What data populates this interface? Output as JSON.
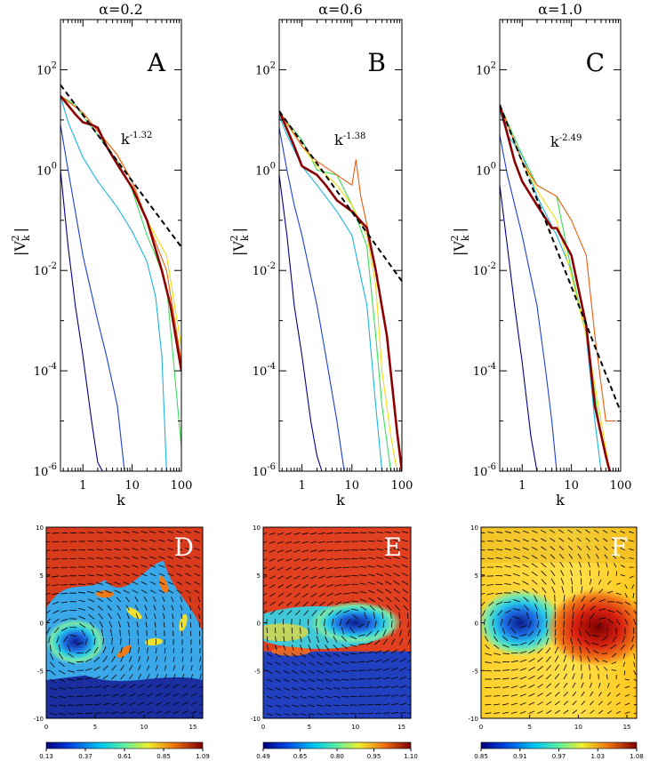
{
  "chart_data": [
    {
      "type": "line",
      "title": "α=0.2",
      "panel_label": "A",
      "xlabel": "k",
      "ylabel": "|V_k^2|",
      "xscale": "log",
      "yscale": "log",
      "xlim": [
        0.35,
        100
      ],
      "ylim": [
        1e-06,
        1000
      ],
      "xticks": [
        "1",
        "10",
        "100"
      ],
      "yticks": [
        "10^2",
        "10^0",
        "10^-2",
        "10^-4",
        "10^-6"
      ],
      "fit_label": "k^-1.32",
      "fit": {
        "exponent": -1.32,
        "x": [
          0.35,
          100
        ],
        "y": [
          50,
          0.0293
        ]
      },
      "series": [
        {
          "color": "#000080",
          "x": [
            0.35,
            0.5,
            0.7,
            1,
            1.5,
            2,
            2.5
          ],
          "y": [
            1,
            0.03,
            0.002,
            0.0002,
            1e-05,
            1.5e-06,
            1e-06
          ]
        },
        {
          "color": "#1e40d0",
          "x": [
            0.35,
            0.5,
            0.7,
            1,
            2,
            3,
            5,
            7
          ],
          "y": [
            8,
            1,
            0.15,
            0.02,
            0.001,
            0.0002,
            2e-05,
            1e-06
          ]
        },
        {
          "color": "#1eb4e0",
          "x": [
            0.35,
            0.5,
            1,
            2,
            5,
            10,
            20,
            30,
            40,
            50
          ],
          "y": [
            30,
            9,
            1.8,
            0.6,
            0.18,
            0.06,
            0.015,
            0.003,
            0.0002,
            1e-06
          ]
        },
        {
          "color": "#3cdc5a",
          "x": [
            0.35,
            0.7,
            1,
            2,
            5,
            10,
            20,
            30,
            50,
            100
          ],
          "y": [
            30,
            20,
            12,
            5,
            1.5,
            0.4,
            0.05,
            0.02,
            0.005,
            3e-06
          ]
        },
        {
          "color": "#f0dc14",
          "x": [
            0.35,
            1,
            2,
            5,
            10,
            20,
            50,
            100
          ],
          "y": [
            30,
            14,
            6,
            2,
            0.6,
            0.1,
            0.02,
            0.0003
          ]
        },
        {
          "color": "#f05a0a",
          "x": [
            0.35,
            1,
            2,
            5,
            10,
            20,
            50,
            100
          ],
          "y": [
            30,
            14,
            6,
            2,
            0.6,
            0.1,
            0.01,
            0.00015
          ]
        },
        {
          "color": "#8b0000",
          "width": 2.6,
          "x": [
            0.35,
            0.7,
            1,
            1.5,
            2,
            3,
            5,
            10,
            20,
            40,
            60,
            100
          ],
          "y": [
            30,
            13,
            9,
            8,
            7,
            3,
            1.3,
            0.45,
            0.1,
            0.01,
            0.002,
            0.0001
          ]
        }
      ]
    },
    {
      "type": "line",
      "title": "α=0.6",
      "panel_label": "B",
      "xlabel": "k",
      "ylabel": "|V_k^2|",
      "xscale": "log",
      "yscale": "log",
      "xlim": [
        0.35,
        100
      ],
      "ylim": [
        1e-06,
        1000
      ],
      "xticks": [
        "1",
        "10",
        "100"
      ],
      "yticks": [
        "10^2",
        "10^0",
        "10^-2",
        "10^-4",
        "10^-6"
      ],
      "fit_label": "k^-1.38",
      "fit": {
        "exponent": -1.38,
        "x": [
          0.35,
          100
        ],
        "y": [
          15,
          0.0061
        ]
      },
      "series": [
        {
          "color": "#000080",
          "x": [
            0.35,
            0.5,
            0.7,
            1,
            1.5,
            2,
            2.5
          ],
          "y": [
            0.8,
            0.05,
            0.002,
            0.0002,
            1e-05,
            2e-06,
            1e-06
          ]
        },
        {
          "color": "#1e40d0",
          "x": [
            0.35,
            0.5,
            0.7,
            1,
            2,
            3,
            5,
            7
          ],
          "y": [
            7,
            1,
            0.2,
            0.05,
            0.002,
            0.0002,
            1e-05,
            1e-06
          ]
        },
        {
          "color": "#1eb4e0",
          "x": [
            0.35,
            0.5,
            1,
            2,
            5,
            10,
            20,
            30,
            40
          ],
          "y": [
            12,
            5,
            1.2,
            0.5,
            0.15,
            0.05,
            0.002,
            2e-05,
            1e-06
          ]
        },
        {
          "color": "#3cdc5a",
          "x": [
            0.35,
            1,
            2,
            5,
            10,
            20,
            30,
            40,
            60
          ],
          "y": [
            14,
            4,
            1,
            0.8,
            0.2,
            0.03,
            0.0005,
            2e-05,
            1e-06
          ]
        },
        {
          "color": "#f0dc14",
          "x": [
            0.35,
            1,
            2,
            5,
            10,
            20,
            30,
            40,
            60,
            80
          ],
          "y": [
            14,
            3,
            1.2,
            0.5,
            0.2,
            0.05,
            0.005,
            0.0001,
            5e-06,
            1e-06
          ]
        },
        {
          "color": "#f05a0a",
          "x": [
            0.35,
            1,
            2,
            5,
            10,
            12,
            15,
            20,
            30,
            50,
            80
          ],
          "y": [
            15,
            3,
            1.5,
            0.8,
            0.5,
            1.6,
            0.3,
            0.08,
            0.01,
            0.0005,
            5e-06
          ]
        },
        {
          "color": "#8b0000",
          "width": 2.6,
          "x": [
            0.35,
            0.7,
            1,
            2,
            3,
            5,
            10,
            20,
            30,
            50,
            80,
            100
          ],
          "y": [
            15,
            3,
            1.2,
            0.8,
            0.5,
            0.25,
            0.15,
            0.07,
            0.01,
            0.0005,
            6e-06,
            1e-06
          ]
        }
      ]
    },
    {
      "type": "line",
      "title": "α=1.0",
      "panel_label": "C",
      "xlabel": "k",
      "ylabel": "|V_k^2|",
      "xscale": "log",
      "yscale": "log",
      "xlim": [
        0.35,
        100
      ],
      "ylim": [
        1e-06,
        1000
      ],
      "xticks": [
        "1",
        "10",
        "100"
      ],
      "yticks": [
        "10^2",
        "10^0",
        "10^-2",
        "10^-4",
        "10^-6"
      ],
      "fit_label": "k^-2.49",
      "fit": {
        "exponent": -2.49,
        "x": [
          0.35,
          100
        ],
        "y": [
          20,
          1.53e-05
        ]
      },
      "series": [
        {
          "color": "#000080",
          "x": [
            0.35,
            0.5,
            0.7,
            1,
            1.5,
            2
          ],
          "y": [
            0.5,
            0.03,
            0.002,
            0.00015,
            5e-06,
            1e-06
          ]
        },
        {
          "color": "#1e40d0",
          "x": [
            0.35,
            0.5,
            1,
            2,
            3,
            4,
            5
          ],
          "y": [
            5,
            0.8,
            0.05,
            0.002,
            0.0001,
            1e-05,
            1e-06
          ]
        },
        {
          "color": "#1eb4e0",
          "x": [
            0.35,
            0.5,
            1,
            2,
            5,
            10,
            20,
            30,
            40
          ],
          "y": [
            15,
            5,
            2,
            0.3,
            0.05,
            0.01,
            0.0005,
            1e-05,
            1e-06
          ]
        },
        {
          "color": "#3cdc5a",
          "x": [
            0.35,
            1,
            2,
            5,
            10,
            20,
            40,
            60
          ],
          "y": [
            20,
            2,
            0.5,
            0.3,
            0.01,
            0.0005,
            5e-06,
            1e-06
          ]
        },
        {
          "color": "#f0dc14",
          "x": [
            0.35,
            1,
            2,
            5,
            10,
            20,
            40,
            60
          ],
          "y": [
            20,
            1.5,
            0.4,
            0.1,
            0.008,
            0.0005,
            1e-05,
            1e-06
          ]
        },
        {
          "color": "#f05a0a",
          "x": [
            0.35,
            1,
            2,
            5,
            10,
            20,
            30,
            50,
            80
          ],
          "y": [
            20,
            1.5,
            0.5,
            0.3,
            0.1,
            0.02,
            0.0005,
            1e-05,
            1e-05
          ]
        },
        {
          "color": "#8b0000",
          "width": 2.6,
          "x": [
            0.35,
            0.7,
            1,
            2,
            4,
            5,
            10,
            20,
            30,
            50,
            60
          ],
          "y": [
            20,
            1.5,
            0.6,
            0.2,
            0.07,
            0.07,
            0.02,
            0.0008,
            2e-05,
            2e-06,
            1e-06
          ]
        }
      ]
    },
    {
      "type": "heatmap",
      "panel_label": "D",
      "xlim": [
        0,
        16
      ],
      "ylim": [
        -10,
        10
      ],
      "xticks": [
        "0",
        "5",
        "10",
        "15"
      ],
      "yticks": [
        "10",
        "5",
        "0",
        "-5",
        "-10"
      ],
      "colorbar_ticks": [
        "0.13",
        "0.37",
        "0.61",
        "0.85",
        "1.09"
      ],
      "vortices": [
        {
          "x": 3,
          "y": -2,
          "sign": 1
        }
      ]
    },
    {
      "type": "heatmap",
      "panel_label": "E",
      "xlim": [
        0,
        16
      ],
      "ylim": [
        -10,
        10
      ],
      "xticks": [
        "0",
        "5",
        "10",
        "15"
      ],
      "yticks": [
        "10",
        "5",
        "0",
        "-5",
        "-10"
      ],
      "colorbar_ticks": [
        "0.49",
        "0.65",
        "0.80",
        "0.95",
        "1.10"
      ],
      "vortices": [
        {
          "x": 10,
          "y": 0,
          "sign": 1
        }
      ]
    },
    {
      "type": "heatmap",
      "panel_label": "F",
      "xlim": [
        0,
        16
      ],
      "ylim": [
        -10,
        10
      ],
      "xticks": [
        "0",
        "5",
        "10",
        "15"
      ],
      "yticks": [
        "10",
        "5",
        "0",
        "-5",
        "-10"
      ],
      "colorbar_ticks": [
        "0.85",
        "0.91",
        "0.97",
        "1.03",
        "1.08"
      ],
      "vortices": [
        {
          "x": 4,
          "y": 0,
          "sign": 1
        },
        {
          "x": 12,
          "y": -0.5,
          "sign": -1
        }
      ]
    }
  ]
}
